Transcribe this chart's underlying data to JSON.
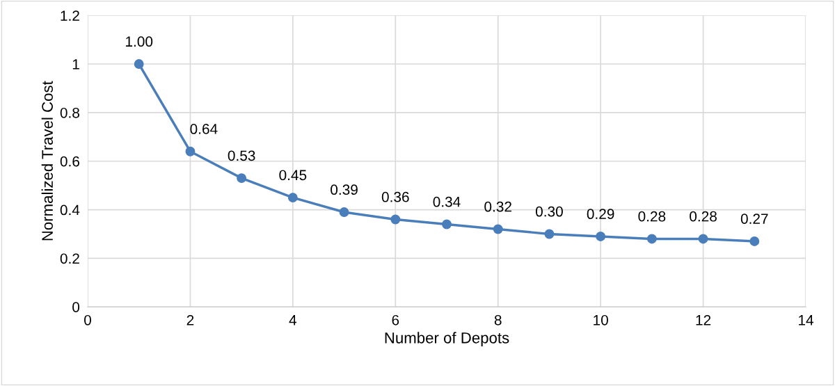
{
  "chart_data": {
    "type": "line",
    "xlabel": "Number of Depots",
    "ylabel": "Normalized Travel Cost",
    "x": [
      1,
      2,
      3,
      4,
      5,
      6,
      7,
      8,
      9,
      10,
      11,
      12,
      13
    ],
    "series": [
      {
        "color": "#4a7ebb",
        "values": [
          1.0,
          0.64,
          0.53,
          0.45,
          0.39,
          0.36,
          0.34,
          0.32,
          0.3,
          0.29,
          0.28,
          0.28,
          0.27
        ],
        "value_labels": [
          "1.00",
          "0.64",
          "0.53",
          "0.45",
          "0.39",
          "0.36",
          "0.34",
          "0.32",
          "0.30",
          "0.29",
          "0.28",
          "0.28",
          "0.27"
        ]
      }
    ],
    "xlim": [
      0,
      14
    ],
    "xticks": [
      0,
      2,
      4,
      6,
      8,
      10,
      12,
      14
    ],
    "ylim": [
      0,
      1.2
    ],
    "yticks": [
      0,
      0.2,
      0.4,
      0.6,
      0.8,
      1,
      1.2
    ],
    "grid": true,
    "marker": "circle",
    "line_style": "solid",
    "legend": false
  }
}
